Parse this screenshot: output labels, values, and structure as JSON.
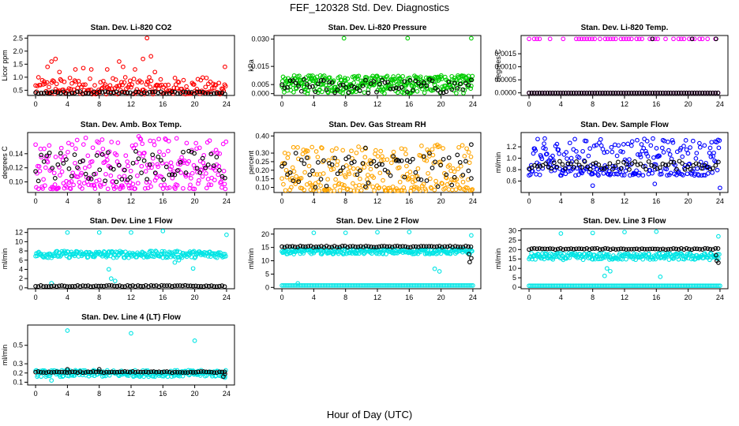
{
  "figure": {
    "title": "FEF_120328  Std. Dev. Diagnostics",
    "xlabel": "Hour of Day (UTC)"
  },
  "chart_data": [
    {
      "type": "scatter",
      "title": "Stan. Dev. Li-820 CO2",
      "ylabel": "Licor ppm",
      "xlim": [
        -1,
        25
      ],
      "ylim": [
        0.3,
        2.6
      ],
      "xticks": [
        0,
        4,
        8,
        12,
        16,
        20,
        24
      ],
      "yticks": [
        0.5,
        1.0,
        1.5,
        2.0,
        2.5
      ],
      "ytick_labels": [
        "0.5",
        "1.0",
        "1.5",
        "2.0",
        "2.5"
      ],
      "series": [
        {
          "color": "#ff0000",
          "pattern": "red-scatter",
          "band": [
            0.35,
            1.0
          ],
          "outliers": [
            [
              1.5,
              1.4
            ],
            [
              2,
              1.6
            ],
            [
              2.5,
              1.7
            ],
            [
              5,
              1.3
            ],
            [
              6,
              1.35
            ],
            [
              7,
              1.3
            ],
            [
              9,
              1.3
            ],
            [
              11,
              1.4
            ],
            [
              13.5,
              1.7
            ],
            [
              14,
              2.5
            ],
            [
              14.5,
              1.8
            ],
            [
              15,
              1.2
            ],
            [
              23.8,
              1.4
            ],
            [
              3,
              1.2
            ],
            [
              10.5,
              1.6
            ],
            [
              12.5,
              1.3
            ]
          ],
          "mean": 0.55
        },
        {
          "color": "#000000",
          "pattern": "black-scatter",
          "band": [
            0.35,
            0.45
          ],
          "mean": 0.4,
          "outliers": []
        }
      ]
    },
    {
      "type": "scatter",
      "title": "Stan. Dev. Li-820 Pressure",
      "ylabel": "kPa",
      "xlim": [
        -1,
        25
      ],
      "ylim": [
        -0.001,
        0.032
      ],
      "xticks": [
        0,
        4,
        8,
        12,
        16,
        20,
        24
      ],
      "yticks": [
        0.0,
        0.005,
        0.015,
        0.03
      ],
      "ytick_labels": [
        "0.000",
        "0.005",
        "0.015",
        "0.030"
      ],
      "series": [
        {
          "color": "#00cc00",
          "pattern": "green-dense",
          "band": [
            0.0,
            0.01
          ],
          "outliers": [
            [
              7.8,
              0.0305
            ],
            [
              15.8,
              0.0305
            ],
            [
              23.8,
              0.0305
            ]
          ],
          "mean": 0.005
        },
        {
          "color": "#000000",
          "pattern": "black-scatter",
          "band": [
            0.0,
            0.008
          ],
          "mean": 0.004,
          "outliers": []
        }
      ]
    },
    {
      "type": "scatter",
      "title": "Stan. Dev. Li-820 Temp.",
      "ylabel": "degrees C",
      "xlim": [
        -1,
        25
      ],
      "ylim": [
        -0.0001,
        0.0022
      ],
      "xticks": [
        0,
        4,
        8,
        12,
        16,
        20,
        24
      ],
      "yticks": [
        0.0,
        0.0005,
        0.001,
        0.0015
      ],
      "ytick_labels": [
        "0.0000",
        "0.0005",
        "0.0010",
        "0.0015"
      ],
      "series": [
        {
          "color": "#ff00ff",
          "pattern": "two-level",
          "levels": [
            0.0,
            0.00207
          ],
          "mean": 0.0
        },
        {
          "color": "#000000",
          "pattern": "two-level",
          "levels": [
            0.0
          ],
          "outliers": [
            [
              15.5,
              0.00207
            ],
            [
              20.5,
              0.00207
            ],
            [
              23.5,
              0.00207
            ]
          ],
          "mean": 0.0
        }
      ]
    },
    {
      "type": "scatter",
      "title": "Stan. Dev. Amb. Box Temp.",
      "ylabel": "degrees C",
      "xlim": [
        -1,
        25
      ],
      "ylim": [
        0.085,
        0.17
      ],
      "xticks": [
        0,
        4,
        8,
        12,
        16,
        20,
        24
      ],
      "yticks": [
        0.1,
        0.12,
        0.14
      ],
      "ytick_labels": [
        "0.10",
        "0.12",
        "0.14"
      ],
      "series": [
        {
          "color": "#ff00ff",
          "pattern": "magenta-scatter",
          "band": [
            0.09,
            0.165
          ],
          "mean": 0.125
        },
        {
          "color": "#000000",
          "pattern": "black-scatter",
          "band": [
            0.1,
            0.145
          ],
          "mean": 0.122,
          "outliers": []
        }
      ]
    },
    {
      "type": "scatter",
      "title": "Stan. Dev. Gas Stream RH",
      "ylabel": "percent",
      "xlim": [
        -1,
        25
      ],
      "ylim": [
        0.07,
        0.42
      ],
      "xticks": [
        0,
        4,
        8,
        12,
        16,
        20,
        24
      ],
      "yticks": [
        0.1,
        0.15,
        0.2,
        0.25,
        0.3,
        0.4
      ],
      "ytick_labels": [
        "0.10",
        "0.15",
        "0.20",
        "0.25",
        "0.30",
        "0.40"
      ],
      "series": [
        {
          "color": "#ffa500",
          "pattern": "orange-scatter",
          "band": [
            0.08,
            0.35
          ],
          "mean": 0.18
        },
        {
          "color": "#000000",
          "pattern": "black-scatter",
          "band": [
            0.1,
            0.3
          ],
          "mean": 0.15,
          "outliers": [
            [
              10.5,
              0.33
            ],
            [
              14.5,
              0.26
            ],
            [
              23.8,
              0.35
            ]
          ]
        }
      ]
    },
    {
      "type": "scatter",
      "title": "Stan. Dev. Sample Flow",
      "ylabel": "ml/min",
      "xlim": [
        -1,
        25
      ],
      "ylim": [
        0.4,
        1.45
      ],
      "xticks": [
        0,
        4,
        8,
        12,
        16,
        20,
        24
      ],
      "yticks": [
        0.6,
        0.8,
        1.0,
        1.2
      ],
      "ytick_labels": [
        "0.6",
        "0.8",
        "1.0",
        "1.2"
      ],
      "series": [
        {
          "color": "#0000ff",
          "pattern": "blue-scatter",
          "band": [
            0.7,
            1.35
          ],
          "mean": 0.9,
          "outliers": [
            [
              8,
              0.52
            ],
            [
              15.8,
              0.55
            ],
            [
              24,
              0.48
            ]
          ]
        },
        {
          "color": "#000000",
          "pattern": "black-scatter",
          "band": [
            0.8,
            0.95
          ],
          "mean": 0.87,
          "outliers": []
        }
      ]
    },
    {
      "type": "scatter",
      "title": "Stan. Dev. Line 1 Flow",
      "ylabel": "ml/min",
      "xlim": [
        -1,
        25
      ],
      "ylim": [
        -0.2,
        12.8
      ],
      "xticks": [
        0,
        4,
        8,
        12,
        16,
        20,
        24
      ],
      "yticks": [
        0,
        2,
        4,
        6,
        8,
        10,
        12
      ],
      "ytick_labels": [
        "0",
        "2",
        "4",
        "6",
        "8",
        "10",
        "12"
      ],
      "series": [
        {
          "color": "#00e5e5",
          "pattern": "cyan-band",
          "band": [
            6.5,
            8.0
          ],
          "mean": 7.2,
          "outliers": [
            [
              4,
              12
            ],
            [
              8,
              12
            ],
            [
              12,
              12
            ],
            [
              16,
              12.3
            ],
            [
              24,
              11.5
            ],
            [
              9.5,
              2
            ],
            [
              2,
              1
            ],
            [
              10,
              1.5
            ],
            [
              9.2,
              4
            ],
            [
              19.8,
              4.2
            ],
            [
              17.5,
              5.5
            ],
            [
              18,
              6
            ]
          ]
        },
        {
          "color": "#000000",
          "pattern": "flat",
          "value": 0.4,
          "mean": 0.4
        }
      ]
    },
    {
      "type": "scatter",
      "title": "Stan. Dev. Line 2 Flow",
      "ylabel": "ml/min",
      "xlim": [
        -1,
        25
      ],
      "ylim": [
        -0.5,
        22
      ],
      "xticks": [
        0,
        4,
        8,
        12,
        16,
        20,
        24
      ],
      "yticks": [
        0,
        5,
        10,
        15,
        20
      ],
      "ytick_labels": [
        "0",
        "5",
        "10",
        "15",
        "20"
      ],
      "series": [
        {
          "color": "#00e5e5",
          "pattern": "cyan-band",
          "band": [
            12.5,
            14.5
          ],
          "mean": 13.5,
          "outliers": [
            [
              4,
              20.5
            ],
            [
              8,
              20.5
            ],
            [
              12,
              20.7
            ],
            [
              16,
              20.8
            ],
            [
              23.8,
              19.5
            ],
            [
              2,
              1.5
            ],
            [
              19.2,
              7
            ],
            [
              19.8,
              6
            ]
          ],
          "low": 0.7
        },
        {
          "color": "#000000",
          "pattern": "flat",
          "value": 15.3,
          "mean": 15.3,
          "outliers": [
            [
              23.6,
              9.5
            ],
            [
              23.8,
              11
            ],
            [
              23.5,
              12.5
            ]
          ]
        }
      ]
    },
    {
      "type": "scatter",
      "title": "Stan. Dev. Line 3 Flow",
      "ylabel": "ml/min",
      "xlim": [
        -1,
        25
      ],
      "ylim": [
        -0.8,
        31
      ],
      "xticks": [
        0,
        4,
        8,
        12,
        16,
        20,
        24
      ],
      "yticks": [
        0,
        5,
        10,
        15,
        20,
        25,
        30
      ],
      "ytick_labels": [
        "0",
        "5",
        "10",
        "15",
        "20",
        "25",
        "30"
      ],
      "series": [
        {
          "color": "#00e5e5",
          "pattern": "cyan-band",
          "band": [
            14.5,
            18.0
          ],
          "mean": 16.3,
          "outliers": [
            [
              4,
              28.5
            ],
            [
              8,
              28.8
            ],
            [
              12,
              29.3
            ],
            [
              16,
              29.5
            ],
            [
              23.8,
              27
            ],
            [
              9.5,
              6
            ],
            [
              10.2,
              8.5
            ],
            [
              9.8,
              10
            ],
            [
              2,
              18
            ],
            [
              16.5,
              5.5
            ]
          ],
          "low": 0.8
        },
        {
          "color": "#000000",
          "pattern": "flat",
          "value": 20.3,
          "mean": 20.3,
          "outliers": [
            [
              23.6,
              14
            ],
            [
              23.8,
              13
            ],
            [
              23.5,
              17
            ]
          ]
        }
      ]
    },
    {
      "type": "scatter",
      "title": "Stan. Dev. Line 4 (LT) Flow",
      "ylabel": "ml/min",
      "xlim": [
        -1,
        25
      ],
      "ylim": [
        0.07,
        0.72
      ],
      "xticks": [
        0,
        4,
        8,
        12,
        16,
        20,
        24
      ],
      "yticks": [
        0.1,
        0.2,
        0.3,
        0.5
      ],
      "ytick_labels": [
        "0.1",
        "0.2",
        "0.3",
        "0.5"
      ],
      "series": [
        {
          "color": "#00e5e5",
          "pattern": "cyan-band",
          "band": [
            0.16,
            0.23
          ],
          "mean": 0.195,
          "outliers": [
            [
              4,
              0.66
            ],
            [
              12,
              0.63
            ],
            [
              20,
              0.55
            ],
            [
              2,
              0.12
            ],
            [
              23.8,
              0.15
            ]
          ]
        },
        {
          "color": "#000000",
          "pattern": "flat",
          "value": 0.21,
          "mean": 0.21,
          "outliers": [
            [
              23.6,
              0.16
            ],
            [
              23.8,
              0.19
            ],
            [
              4,
              0.24
            ],
            [
              8,
              0.24
            ]
          ]
        }
      ]
    }
  ]
}
